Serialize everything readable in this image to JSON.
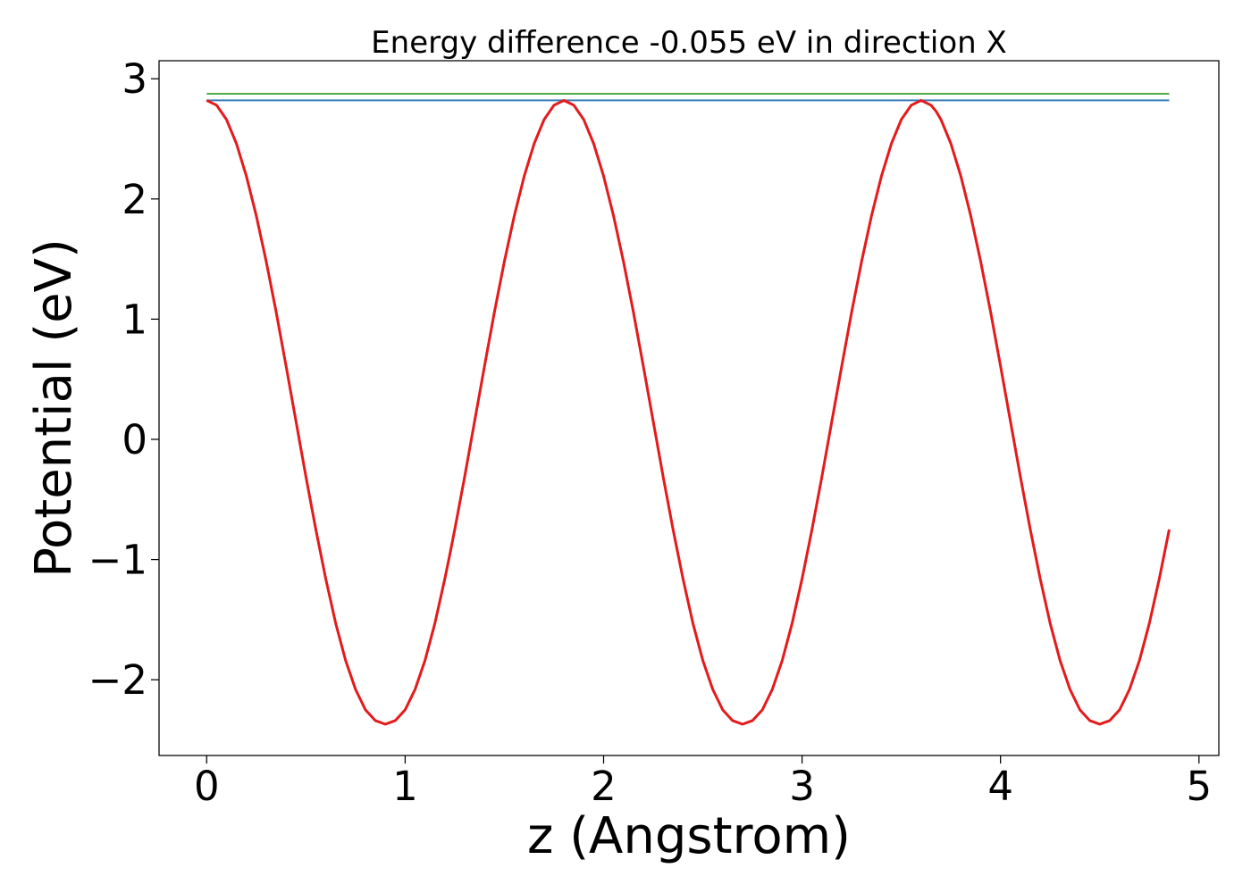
{
  "chart_data": {
    "type": "line",
    "title": "Energy difference -0.055 eV in direction X",
    "xlabel": "z (Angstrom)",
    "ylabel": "Potential (eV)",
    "xlim": [
      -0.24,
      5.1
    ],
    "ylim": [
      -2.63,
      3.15
    ],
    "xticks": [
      0,
      1,
      2,
      3,
      4,
      5
    ],
    "xtick_labels": [
      "0",
      "1",
      "2",
      "3",
      "4",
      "5"
    ],
    "yticks": [
      -2,
      -1,
      0,
      1,
      2,
      3
    ],
    "ytick_labels": [
      "−2",
      "−1",
      "0",
      "1",
      "2",
      "3"
    ],
    "grid": false,
    "legend": "none",
    "colors": {
      "potential": "#e41a1c",
      "blue_line": "#377eb8",
      "green_line": "#4daf4a"
    },
    "series": [
      {
        "role": "potential",
        "x": [
          0.0,
          0.05,
          0.1,
          0.15,
          0.2,
          0.25,
          0.3,
          0.35,
          0.4,
          0.45,
          0.5,
          0.55,
          0.6,
          0.65,
          0.7,
          0.75,
          0.8,
          0.85,
          0.9,
          0.95,
          1.0,
          1.05,
          1.1,
          1.15,
          1.2,
          1.225,
          1.25,
          1.3,
          1.35,
          1.4,
          1.45,
          1.5,
          1.55,
          1.6,
          1.65,
          1.7,
          1.75,
          1.8,
          1.85,
          1.9,
          1.95,
          2.0,
          2.05,
          2.1,
          2.15,
          2.2,
          2.25,
          2.3,
          2.35,
          2.4,
          2.45,
          2.5,
          2.55,
          2.6,
          2.65,
          2.7,
          2.75,
          2.8,
          2.85,
          2.9,
          2.95,
          3.0,
          3.05,
          3.1,
          3.15,
          3.2,
          3.25,
          3.3,
          3.35,
          3.4,
          3.45,
          3.5,
          3.55,
          3.6,
          3.65,
          3.675,
          3.7,
          3.75,
          3.8,
          3.85,
          3.9,
          3.95,
          4.0,
          4.05,
          4.1,
          4.15,
          4.2,
          4.25,
          4.3,
          4.35,
          4.4,
          4.45,
          4.5,
          4.55,
          4.6,
          4.65,
          4.7,
          4.75,
          4.8,
          4.85
        ],
        "y": [
          2.82,
          2.78,
          2.66,
          2.46,
          2.19,
          1.86,
          1.48,
          1.06,
          0.61,
          0.15,
          -0.31,
          -0.75,
          -1.16,
          -1.53,
          -1.84,
          -2.08,
          -2.25,
          -2.34,
          -2.37,
          -2.34,
          -2.25,
          -2.08,
          -1.84,
          -1.53,
          -1.16,
          -0.96,
          -0.75,
          -0.31,
          0.15,
          0.61,
          1.06,
          1.48,
          1.86,
          2.19,
          2.46,
          2.66,
          2.78,
          2.82,
          2.78,
          2.66,
          2.46,
          2.19,
          1.86,
          1.48,
          1.06,
          0.61,
          0.15,
          -0.31,
          -0.75,
          -1.16,
          -1.53,
          -1.84,
          -2.08,
          -2.25,
          -2.34,
          -2.37,
          -2.34,
          -2.25,
          -2.08,
          -1.84,
          -1.53,
          -1.16,
          -0.75,
          -0.31,
          0.15,
          0.61,
          1.06,
          1.48,
          1.86,
          2.19,
          2.46,
          2.66,
          2.78,
          2.82,
          2.78,
          2.73,
          2.66,
          2.46,
          2.19,
          1.86,
          1.48,
          1.06,
          0.61,
          0.15,
          -0.31,
          -0.75,
          -1.16,
          -1.53,
          -1.84,
          -2.08,
          -2.25,
          -2.34,
          -2.37,
          -2.34,
          -2.25,
          -2.08,
          -1.84,
          -1.53,
          -1.16,
          -0.75
        ]
      },
      {
        "role": "blue_line",
        "x": [
          0.0,
          4.85
        ],
        "y": [
          2.82,
          2.82
        ]
      },
      {
        "role": "green_line",
        "x": [
          0.0,
          4.85
        ],
        "y": [
          2.875,
          2.875
        ]
      }
    ]
  }
}
